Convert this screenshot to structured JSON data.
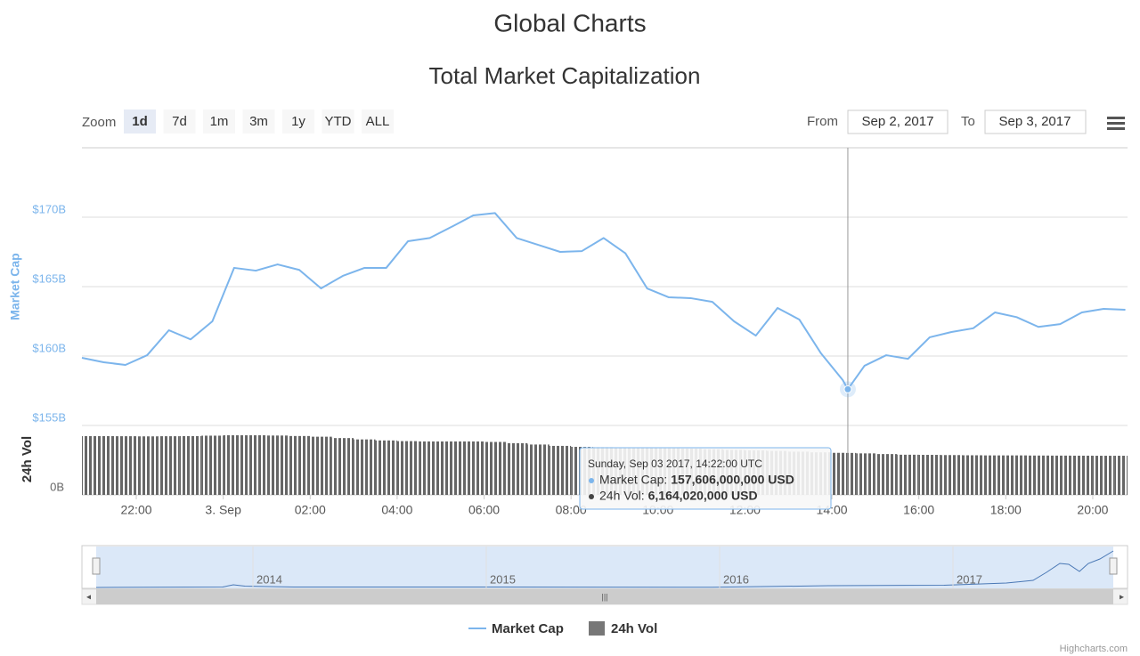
{
  "header": {
    "title": "Global Charts"
  },
  "chart_data": {
    "type": "line",
    "title": "Total Market Capitalization",
    "range_selector": {
      "label": "Zoom",
      "buttons": [
        "1d",
        "7d",
        "1m",
        "3m",
        "1y",
        "YTD",
        "ALL"
      ],
      "from_label": "From",
      "from": "Sep 2, 2017",
      "to_label": "To",
      "to": "Sep 3, 2017"
    },
    "y_label": "Market Cap",
    "y2_label": "24h Vol",
    "x": [
      "2017-09-02T20:45",
      "2017-09-02T21:15",
      "2017-09-02T21:45",
      "2017-09-02T22:15",
      "2017-09-02T22:45",
      "2017-09-02T23:15",
      "2017-09-02T23:45",
      "2017-09-03T00:15",
      "2017-09-03T00:45",
      "2017-09-03T01:15",
      "2017-09-03T01:45",
      "2017-09-03T02:15",
      "2017-09-03T02:45",
      "2017-09-03T03:15",
      "2017-09-03T03:45",
      "2017-09-03T04:15",
      "2017-09-03T04:45",
      "2017-09-03T05:15",
      "2017-09-03T05:45",
      "2017-09-03T06:15",
      "2017-09-03T06:45",
      "2017-09-03T07:15",
      "2017-09-03T07:45",
      "2017-09-03T08:15",
      "2017-09-03T08:45",
      "2017-09-03T09:15",
      "2017-09-03T09:45",
      "2017-09-03T10:15",
      "2017-09-03T10:45",
      "2017-09-03T11:15",
      "2017-09-03T11:45",
      "2017-09-03T12:15",
      "2017-09-03T12:45",
      "2017-09-03T13:15",
      "2017-09-03T13:45",
      "2017-09-03T14:15",
      "2017-09-03T14:22",
      "2017-09-03T14:45",
      "2017-09-03T15:15",
      "2017-09-03T15:45",
      "2017-09-03T16:15",
      "2017-09-03T16:45",
      "2017-09-03T17:15",
      "2017-09-03T17:45",
      "2017-09-03T18:15",
      "2017-09-03T18:45",
      "2017-09-03T19:15",
      "2017-09-03T19:45",
      "2017-09-03T20:15",
      "2017-09-03T20:45"
    ],
    "series": [
      {
        "name": "Market Cap",
        "color": "#7cb5ec",
        "values": [
          159870000000,
          159550000000,
          159360000000,
          160060000000,
          161860000000,
          161200000000,
          162500000000,
          166350000000,
          166150000000,
          166600000000,
          166200000000,
          164870000000,
          165770000000,
          166350000000,
          166350000000,
          168270000000,
          168500000000,
          169300000000,
          170130000000,
          170300000000,
          168500000000,
          168000000000,
          167500000000,
          167560000000,
          168500000000,
          167400000000,
          164870000000,
          164230000000,
          164170000000,
          163900000000,
          162500000000,
          161470000000,
          163460000000,
          162630000000,
          160190000000,
          158270000000,
          157606000000,
          159300000000,
          160060000000,
          159800000000,
          161350000000,
          161730000000,
          162000000000,
          163140000000,
          162800000000,
          162100000000,
          162300000000,
          163140000000,
          163400000000,
          163330000000
        ]
      },
      {
        "name": "24h Vol",
        "color": "#666666",
        "axis": "y2",
        "values": [
          8630000000,
          8630000000,
          8620000000,
          8600000000,
          8620000000,
          8640000000,
          8700000000,
          8760000000,
          8760000000,
          8720000000,
          8650000000,
          8550000000,
          8350000000,
          8150000000,
          8000000000,
          7900000000,
          7850000000,
          7850000000,
          7850000000,
          7780000000,
          7600000000,
          7400000000,
          7200000000,
          7060000000,
          7000000000,
          6950000000,
          6900000000,
          6850000000,
          6800000000,
          6700000000,
          6600000000,
          6540000000,
          6450000000,
          6350000000,
          6250000000,
          6180000000,
          6164020000,
          6100000000,
          6000000000,
          5900000000,
          5880000000,
          5850000000,
          5820000000,
          5800000000,
          5800000000,
          5780000000,
          5770000000,
          5760000000,
          5750000000,
          5750000000
        ]
      }
    ],
    "xlim": [
      "2017-09-02T20:45",
      "2017-09-03T20:48"
    ],
    "xticks": [
      {
        "value": "2017-09-02T22:00",
        "label": "22:00"
      },
      {
        "value": "2017-09-03T00:00",
        "label": "3. Sep"
      },
      {
        "value": "2017-09-03T02:00",
        "label": "02:00"
      },
      {
        "value": "2017-09-03T04:00",
        "label": "04:00"
      },
      {
        "value": "2017-09-03T06:00",
        "label": "06:00"
      },
      {
        "value": "2017-09-03T08:00",
        "label": "08:00"
      },
      {
        "value": "2017-09-03T10:00",
        "label": "10:00"
      },
      {
        "value": "2017-09-03T12:00",
        "label": "12:00"
      },
      {
        "value": "2017-09-03T14:00",
        "label": "14:00"
      },
      {
        "value": "2017-09-03T16:00",
        "label": "16:00"
      },
      {
        "value": "2017-09-03T18:00",
        "label": "18:00"
      },
      {
        "value": "2017-09-03T20:00",
        "label": "20:00"
      }
    ],
    "ylim": [
      155000000000,
      175000000000
    ],
    "yticks": [
      {
        "value": 155000000000,
        "label": "$155B"
      },
      {
        "value": 160000000000,
        "label": "$160B"
      },
      {
        "value": 165000000000,
        "label": "$165B"
      },
      {
        "value": 170000000000,
        "label": "$170B"
      }
    ],
    "y2lim": [
      0,
      10200000000
    ],
    "y2ticks": [
      {
        "value": 0,
        "label": "0B"
      }
    ],
    "grid": true,
    "tooltip": {
      "header": "Sunday, Sep 03 2017, 14:22:00 UTC",
      "rows": [
        {
          "label": "Market Cap:",
          "value": "157,606,000,000 USD"
        },
        {
          "label": "24h Vol:",
          "value": "6,164,020,000 USD"
        }
      ]
    },
    "navigator": {
      "labels": [
        "2014",
        "2015",
        "2016",
        "2017"
      ]
    },
    "legend": "bottom",
    "credits": "Highcharts.com"
  }
}
